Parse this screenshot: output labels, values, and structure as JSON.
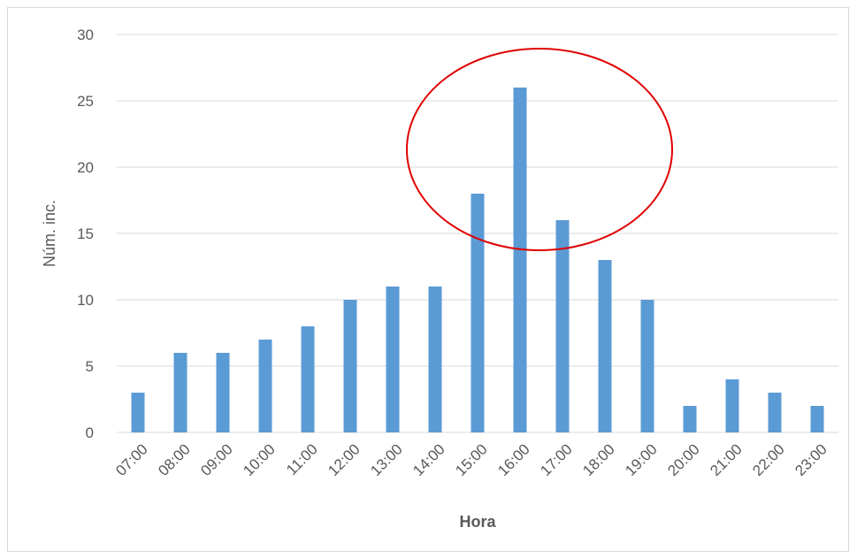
{
  "chart_data": {
    "type": "bar",
    "categories": [
      "07:00",
      "08:00",
      "09:00",
      "10:00",
      "11:00",
      "12:00",
      "13:00",
      "14:00",
      "15:00",
      "16:00",
      "17:00",
      "18:00",
      "19:00",
      "20:00",
      "21:00",
      "22:00",
      "23:00"
    ],
    "values": [
      3,
      6,
      6,
      7,
      8,
      10,
      11,
      11,
      18,
      26,
      16,
      13,
      10,
      2,
      4,
      3,
      2
    ],
    "title": "",
    "xlabel": "Hora",
    "ylabel": "Núm. inc.",
    "ylim": [
      0,
      30
    ],
    "yticks": [
      0,
      5,
      10,
      15,
      20,
      25,
      30
    ],
    "grid": true,
    "legend": "none",
    "bar_color": "#5b9bd5",
    "gridline_color": "#d9d9d9",
    "annotations": [
      {
        "type": "ellipse",
        "color": "#e00000",
        "highlights": [
          "15:00",
          "16:00",
          "17:00",
          "18:00"
        ]
      }
    ]
  }
}
